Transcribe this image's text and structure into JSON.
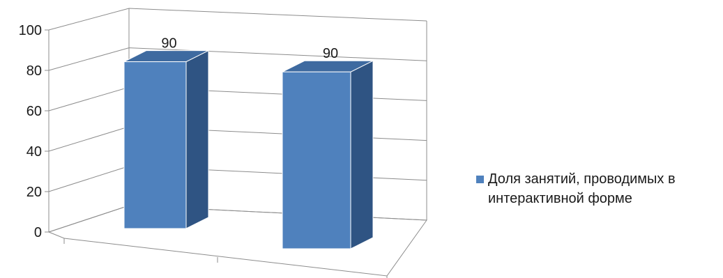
{
  "chart_data": {
    "type": "bar",
    "subtype": "3d-clustered-column",
    "categories": [
      "",
      ""
    ],
    "series": [
      {
        "name": "Доля занятий, проводимых в интерактивной форме",
        "values": [
          90,
          90
        ],
        "color": "#4F81BD",
        "side_color": "#2F5483",
        "top_color": "#3E6AA0"
      }
    ],
    "data_labels": [
      "90",
      "90"
    ],
    "ylim": [
      0,
      100
    ],
    "yticks": [
      0,
      20,
      40,
      60,
      80,
      100
    ],
    "ytick_labels": [
      "0",
      "20",
      "40",
      "60",
      "80",
      "100"
    ],
    "xlabel": "",
    "ylabel": "",
    "title": "",
    "grid": true,
    "legend_position": "right"
  }
}
